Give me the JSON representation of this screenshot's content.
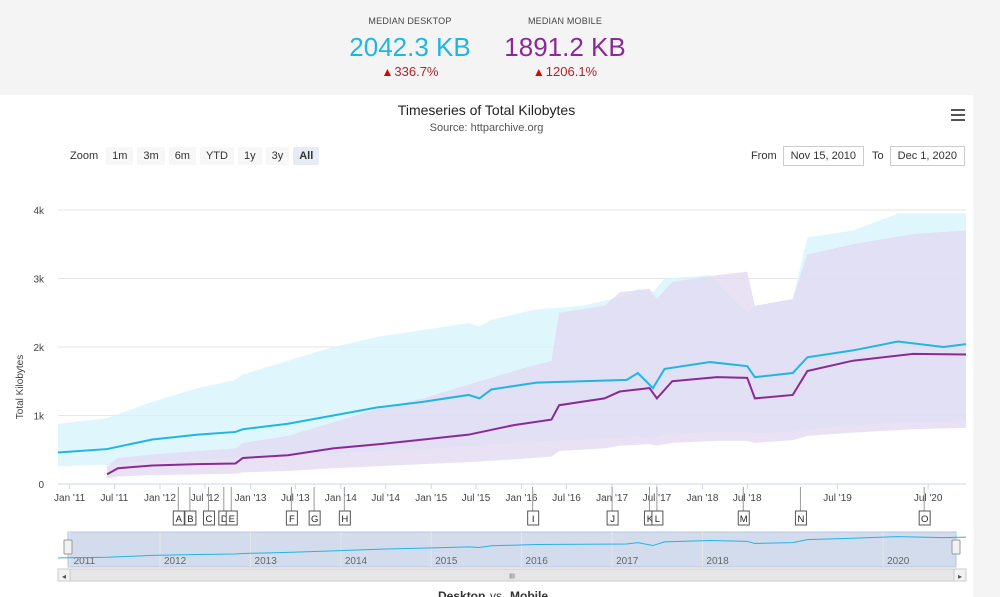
{
  "summary": {
    "desktop": {
      "label": "MEDIAN DESKTOP",
      "value": "2042.3 KB",
      "change": "336.7%",
      "color": "#1fb6e5"
    },
    "mobile": {
      "label": "MEDIAN MOBILE",
      "value": "1891.2 KB",
      "change": "1206.1%",
      "color": "#8b2a96"
    },
    "up_color": "#e00000"
  },
  "toolbar": {
    "zoom_label": "Zoom",
    "zoom_buttons": [
      "1m",
      "3m",
      "6m",
      "YTD",
      "1y",
      "3y",
      "All"
    ],
    "active_zoom": "All",
    "from_label": "From",
    "from_value": "Nov 15, 2010",
    "to_label": "To",
    "to_value": "Dec 1, 2020"
  },
  "chart_data": {
    "type": "line",
    "title": "Timeseries of Total Kilobytes",
    "subtitle": "Source: httparchive.org",
    "ylabel": "Total Kilobytes",
    "ylim": [
      0,
      4000
    ],
    "yticks": [
      0,
      1000,
      2000,
      3000,
      4000
    ],
    "ytick_labels": [
      "0",
      "1k",
      "2k",
      "3k",
      "4k"
    ],
    "xlim": [
      "2010-11-15",
      "2020-12-01"
    ],
    "x_ticks": [
      {
        "date": "2011-01-01",
        "label": "Jan '11"
      },
      {
        "date": "2011-07-01",
        "label": "Jul '11"
      },
      {
        "date": "2012-01-01",
        "label": "Jan '12"
      },
      {
        "date": "2012-07-01",
        "label": "Jul '12"
      },
      {
        "date": "2013-01-01",
        "label": "Jan '13"
      },
      {
        "date": "2013-07-01",
        "label": "Jul '13"
      },
      {
        "date": "2014-01-01",
        "label": "Jan '14"
      },
      {
        "date": "2014-07-01",
        "label": "Jul '14"
      },
      {
        "date": "2015-01-01",
        "label": "Jan '15"
      },
      {
        "date": "2015-07-01",
        "label": "Jul '15"
      },
      {
        "date": "2016-01-01",
        "label": "Jan '16"
      },
      {
        "date": "2016-07-01",
        "label": "Jul '16"
      },
      {
        "date": "2017-01-01",
        "label": "Jan '17"
      },
      {
        "date": "2017-07-01",
        "label": "Jul '17"
      },
      {
        "date": "2018-01-01",
        "label": "Jan '18"
      },
      {
        "date": "2018-07-01",
        "label": "Jul '18"
      },
      {
        "date": "2019-07-01",
        "label": "Jul '19"
      },
      {
        "date": "2020-07-01",
        "label": "Jul '20"
      }
    ],
    "series": [
      {
        "name": "Desktop",
        "color": "#1fb6e5",
        "band_color": "#d6f3fc",
        "points": [
          [
            "2010-11-15",
            460,
            260,
            880
          ],
          [
            "2011-06-01",
            510,
            280,
            960
          ],
          [
            "2011-12-01",
            650,
            330,
            1200
          ],
          [
            "2012-06-01",
            720,
            360,
            1400
          ],
          [
            "2012-11-01",
            760,
            380,
            1520
          ],
          [
            "2012-12-01",
            800,
            390,
            1600
          ],
          [
            "2013-06-01",
            880,
            420,
            1800
          ],
          [
            "2013-12-01",
            1000,
            450,
            2000
          ],
          [
            "2014-06-01",
            1120,
            480,
            2150
          ],
          [
            "2014-12-01",
            1200,
            510,
            2250
          ],
          [
            "2015-06-01",
            1300,
            560,
            2350
          ],
          [
            "2015-07-15",
            1250,
            550,
            2300
          ],
          [
            "2015-09-01",
            1380,
            580,
            2400
          ],
          [
            "2016-03-01",
            1480,
            620,
            2550
          ],
          [
            "2016-09-01",
            1500,
            650,
            2600
          ],
          [
            "2017-03-01",
            1520,
            680,
            2750
          ],
          [
            "2017-04-15",
            1620,
            700,
            2850
          ],
          [
            "2017-06-15",
            1400,
            670,
            2800
          ],
          [
            "2017-08-01",
            1680,
            720,
            3000
          ],
          [
            "2018-02-01",
            1780,
            760,
            3050
          ],
          [
            "2018-07-01",
            1720,
            760,
            2500
          ],
          [
            "2018-08-01",
            1560,
            740,
            2600
          ],
          [
            "2019-01-01",
            1620,
            760,
            2700
          ],
          [
            "2019-03-01",
            1850,
            800,
            3600
          ],
          [
            "2019-09-01",
            1950,
            850,
            3700
          ],
          [
            "2020-03-01",
            2080,
            900,
            3950
          ],
          [
            "2020-09-01",
            2000,
            900,
            3950
          ],
          [
            "2020-12-01",
            2042,
            920,
            3950
          ]
        ]
      },
      {
        "name": "Mobile",
        "color": "#8b2a96",
        "band_color": "#e2d8f2",
        "points": [
          [
            "2011-06-01",
            140,
            80,
            260
          ],
          [
            "2011-07-15",
            230,
            110,
            380
          ],
          [
            "2011-12-01",
            270,
            130,
            430
          ],
          [
            "2012-06-01",
            290,
            140,
            480
          ],
          [
            "2012-11-01",
            300,
            150,
            520
          ],
          [
            "2012-12-01",
            380,
            170,
            600
          ],
          [
            "2013-06-01",
            420,
            190,
            700
          ],
          [
            "2013-12-01",
            520,
            230,
            900
          ],
          [
            "2014-06-01",
            580,
            260,
            1100
          ],
          [
            "2014-12-01",
            650,
            290,
            1250
          ],
          [
            "2015-06-01",
            720,
            320,
            1450
          ],
          [
            "2015-12-01",
            860,
            360,
            1650
          ],
          [
            "2016-05-01",
            940,
            400,
            1800
          ],
          [
            "2016-06-01",
            1150,
            480,
            2500
          ],
          [
            "2016-12-01",
            1250,
            520,
            2600
          ],
          [
            "2017-02-01",
            1350,
            560,
            2800
          ],
          [
            "2017-06-01",
            1400,
            580,
            2850
          ],
          [
            "2017-07-01",
            1250,
            560,
            2700
          ],
          [
            "2017-09-01",
            1500,
            600,
            2950
          ],
          [
            "2018-03-01",
            1560,
            630,
            3050
          ],
          [
            "2018-07-01",
            1550,
            630,
            3100
          ],
          [
            "2018-08-01",
            1250,
            600,
            2600
          ],
          [
            "2019-01-01",
            1300,
            640,
            2700
          ],
          [
            "2019-03-01",
            1650,
            700,
            3350
          ],
          [
            "2019-09-01",
            1800,
            750,
            3500
          ],
          [
            "2020-05-01",
            1900,
            800,
            3650
          ],
          [
            "2020-12-01",
            1891,
            820,
            3700
          ]
        ]
      }
    ],
    "flags": [
      {
        "label": "A",
        "date": "2012-03-15"
      },
      {
        "label": "B",
        "date": "2012-05-01"
      },
      {
        "label": "C",
        "date": "2012-07-15"
      },
      {
        "label": "D",
        "date": "2012-09-15"
      },
      {
        "label": "E",
        "date": "2012-10-15"
      },
      {
        "label": "F",
        "date": "2013-06-15"
      },
      {
        "label": "G",
        "date": "2013-09-15"
      },
      {
        "label": "H",
        "date": "2014-01-15"
      },
      {
        "label": "I",
        "date": "2016-02-15"
      },
      {
        "label": "J",
        "date": "2017-01-01"
      },
      {
        "label": "K",
        "date": "2017-06-01"
      },
      {
        "label": "L",
        "date": "2017-07-01"
      },
      {
        "label": "M",
        "date": "2018-06-15"
      },
      {
        "label": "N",
        "date": "2019-02-01"
      },
      {
        "label": "O",
        "date": "2020-06-15"
      }
    ],
    "navigator": {
      "labels": [
        "2011",
        "2012",
        "2013",
        "2014",
        "2015",
        "2016",
        "2017",
        "2018",
        "2020"
      ],
      "label_dates": [
        "2011-01-01",
        "2012-01-01",
        "2013-01-01",
        "2014-01-01",
        "2015-01-01",
        "2016-01-01",
        "2017-01-01",
        "2018-01-01",
        "2020-01-01"
      ],
      "scrollbar_grip": "III"
    },
    "legend": {
      "desktop": "Desktop",
      "mobile": "Mobile",
      "connector": "vs"
    }
  }
}
